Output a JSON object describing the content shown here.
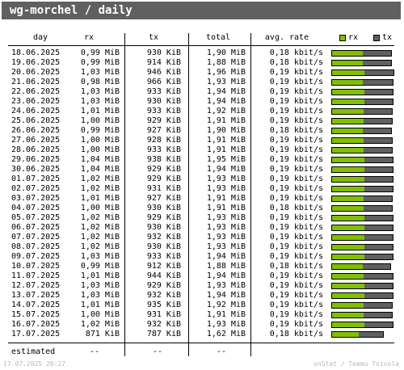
{
  "title": "wg-morchel / daily",
  "headers": {
    "day": "day",
    "rx": "rx",
    "tx": "tx",
    "total": "total",
    "rate": "avg. rate"
  },
  "legend": {
    "rx": "rx",
    "tx": "tx"
  },
  "colors": {
    "rx": "#80c000",
    "tx": "#606060",
    "titlebar": "#606060"
  },
  "rows": [
    {
      "day": "18.06.2025",
      "rx": "0,99 MiB",
      "tx": "930 KiB",
      "total": "1,90 MiB",
      "rate": "0,18 kbit/s"
    },
    {
      "day": "19.06.2025",
      "rx": "0,99 MiB",
      "tx": "914 KiB",
      "total": "1,88 MiB",
      "rate": "0,18 kbit/s"
    },
    {
      "day": "20.06.2025",
      "rx": "1,03 MiB",
      "tx": "946 KiB",
      "total": "1,96 MiB",
      "rate": "0,19 kbit/s"
    },
    {
      "day": "21.06.2025",
      "rx": "0,98 MiB",
      "tx": "966 KiB",
      "total": "1,93 MiB",
      "rate": "0,19 kbit/s"
    },
    {
      "day": "22.06.2025",
      "rx": "1,03 MiB",
      "tx": "933 KiB",
      "total": "1,94 MiB",
      "rate": "0,19 kbit/s"
    },
    {
      "day": "23.06.2025",
      "rx": "1,03 MiB",
      "tx": "930 KiB",
      "total": "1,94 MiB",
      "rate": "0,19 kbit/s"
    },
    {
      "day": "24.06.2025",
      "rx": "1,01 MiB",
      "tx": "933 KiB",
      "total": "1,92 MiB",
      "rate": "0,19 kbit/s"
    },
    {
      "day": "25.06.2025",
      "rx": "1,00 MiB",
      "tx": "929 KiB",
      "total": "1,91 MiB",
      "rate": "0,19 kbit/s"
    },
    {
      "day": "26.06.2025",
      "rx": "0,99 MiB",
      "tx": "927 KiB",
      "total": "1,90 MiB",
      "rate": "0,18 kbit/s"
    },
    {
      "day": "27.06.2025",
      "rx": "1,00 MiB",
      "tx": "928 KiB",
      "total": "1,91 MiB",
      "rate": "0,19 kbit/s"
    },
    {
      "day": "28.06.2025",
      "rx": "1,00 MiB",
      "tx": "933 KiB",
      "total": "1,91 MiB",
      "rate": "0,19 kbit/s"
    },
    {
      "day": "29.06.2025",
      "rx": "1,04 MiB",
      "tx": "938 KiB",
      "total": "1,95 MiB",
      "rate": "0,19 kbit/s"
    },
    {
      "day": "30.06.2025",
      "rx": "1,04 MiB",
      "tx": "929 KiB",
      "total": "1,94 MiB",
      "rate": "0,19 kbit/s"
    },
    {
      "day": "01.07.2025",
      "rx": "1,02 MiB",
      "tx": "929 KiB",
      "total": "1,93 MiB",
      "rate": "0,19 kbit/s"
    },
    {
      "day": "02.07.2025",
      "rx": "1,02 MiB",
      "tx": "931 KiB",
      "total": "1,93 MiB",
      "rate": "0,19 kbit/s"
    },
    {
      "day": "03.07.2025",
      "rx": "1,01 MiB",
      "tx": "927 KiB",
      "total": "1,91 MiB",
      "rate": "0,19 kbit/s"
    },
    {
      "day": "04.07.2025",
      "rx": "1,00 MiB",
      "tx": "930 KiB",
      "total": "1,91 MiB",
      "rate": "0,18 kbit/s"
    },
    {
      "day": "05.07.2025",
      "rx": "1,02 MiB",
      "tx": "929 KiB",
      "total": "1,93 MiB",
      "rate": "0,19 kbit/s"
    },
    {
      "day": "06.07.2025",
      "rx": "1,02 MiB",
      "tx": "930 KiB",
      "total": "1,93 MiB",
      "rate": "0,19 kbit/s"
    },
    {
      "day": "07.07.2025",
      "rx": "1,02 MiB",
      "tx": "932 KiB",
      "total": "1,93 MiB",
      "rate": "0,19 kbit/s"
    },
    {
      "day": "08.07.2025",
      "rx": "1,02 MiB",
      "tx": "930 KiB",
      "total": "1,93 MiB",
      "rate": "0,19 kbit/s"
    },
    {
      "day": "09.07.2025",
      "rx": "1,03 MiB",
      "tx": "933 KiB",
      "total": "1,94 MiB",
      "rate": "0,19 kbit/s"
    },
    {
      "day": "10.07.2025",
      "rx": "0,99 MiB",
      "tx": "912 KiB",
      "total": "1,88 MiB",
      "rate": "0,18 kbit/s"
    },
    {
      "day": "11.07.2025",
      "rx": "1,01 MiB",
      "tx": "944 KiB",
      "total": "1,94 MiB",
      "rate": "0,19 kbit/s"
    },
    {
      "day": "12.07.2025",
      "rx": "1,03 MiB",
      "tx": "929 KiB",
      "total": "1,93 MiB",
      "rate": "0,19 kbit/s"
    },
    {
      "day": "13.07.2025",
      "rx": "1,03 MiB",
      "tx": "932 KiB",
      "total": "1,94 MiB",
      "rate": "0,19 kbit/s"
    },
    {
      "day": "14.07.2025",
      "rx": "1,01 MiB",
      "tx": "935 KiB",
      "total": "1,92 MiB",
      "rate": "0,19 kbit/s"
    },
    {
      "day": "15.07.2025",
      "rx": "1,00 MiB",
      "tx": "931 KiB",
      "total": "1,91 MiB",
      "rate": "0,19 kbit/s"
    },
    {
      "day": "16.07.2025",
      "rx": "1,02 MiB",
      "tx": "932 KiB",
      "total": "1,93 MiB",
      "rate": "0,19 kbit/s"
    },
    {
      "day": "17.07.2025",
      "rx": "871 KiB",
      "tx": "787 KiB",
      "total": "1,62 MiB",
      "rate": "0,18 kbit/s"
    }
  ],
  "bars": [
    {
      "rx": 0.99,
      "tx": 0.908
    },
    {
      "rx": 0.99,
      "tx": 0.893
    },
    {
      "rx": 1.03,
      "tx": 0.924
    },
    {
      "rx": 0.98,
      "tx": 0.943
    },
    {
      "rx": 1.03,
      "tx": 0.911
    },
    {
      "rx": 1.03,
      "tx": 0.908
    },
    {
      "rx": 1.01,
      "tx": 0.911
    },
    {
      "rx": 1.0,
      "tx": 0.907
    },
    {
      "rx": 0.99,
      "tx": 0.905
    },
    {
      "rx": 1.0,
      "tx": 0.906
    },
    {
      "rx": 1.0,
      "tx": 0.911
    },
    {
      "rx": 1.04,
      "tx": 0.916
    },
    {
      "rx": 1.04,
      "tx": 0.907
    },
    {
      "rx": 1.02,
      "tx": 0.907
    },
    {
      "rx": 1.02,
      "tx": 0.909
    },
    {
      "rx": 1.01,
      "tx": 0.905
    },
    {
      "rx": 1.0,
      "tx": 0.908
    },
    {
      "rx": 1.02,
      "tx": 0.907
    },
    {
      "rx": 1.02,
      "tx": 0.908
    },
    {
      "rx": 1.02,
      "tx": 0.91
    },
    {
      "rx": 1.02,
      "tx": 0.908
    },
    {
      "rx": 1.03,
      "tx": 0.911
    },
    {
      "rx": 0.99,
      "tx": 0.891
    },
    {
      "rx": 1.01,
      "tx": 0.922
    },
    {
      "rx": 1.03,
      "tx": 0.907
    },
    {
      "rx": 1.03,
      "tx": 0.91
    },
    {
      "rx": 1.01,
      "tx": 0.913
    },
    {
      "rx": 1.0,
      "tx": 0.909
    },
    {
      "rx": 1.02,
      "tx": 0.91
    },
    {
      "rx": 0.851,
      "tx": 0.769
    }
  ],
  "bar_max_total": 1.96,
  "estimated": {
    "label": "estimated",
    "rx": "--",
    "tx": "--",
    "total": "--"
  },
  "footer": {
    "timestamp": "17.07.2025 20:27",
    "credit": "vnStat / Teemu Toivola"
  }
}
